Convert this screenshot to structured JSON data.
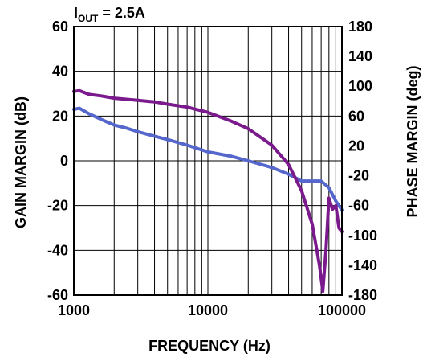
{
  "chart_data": {
    "type": "line",
    "annotation": {
      "prefix": "I",
      "sub": "OUT",
      "suffix": " = 2.5A"
    },
    "xlabel": "FREQUENCY (Hz)",
    "ylabel_left": "GAIN MARGIN (dB)",
    "ylabel_right": "PHASE MARGIN (deg)",
    "xscale": "log",
    "xlim": [
      1000,
      100000
    ],
    "ylim_left": [
      -60,
      60
    ],
    "ylim_right": [
      -180,
      180
    ],
    "x_ticks": [
      "1000",
      "10000",
      "100000"
    ],
    "y_ticks_left": [
      "60",
      "40",
      "20",
      "0",
      "-20",
      "-40",
      "-60"
    ],
    "y_ticks_right": [
      "180",
      "140",
      "100",
      "60",
      "20",
      "-20",
      "-60",
      "-100",
      "-140",
      "-180"
    ],
    "grid": true,
    "series": [
      {
        "color": "#5566cc",
        "axis": "left",
        "points": [
          [
            1000,
            23
          ],
          [
            1100,
            23.5
          ],
          [
            1300,
            21
          ],
          [
            1600,
            18.5
          ],
          [
            2000,
            16
          ],
          [
            2500,
            14.5
          ],
          [
            3000,
            13
          ],
          [
            4000,
            11
          ],
          [
            5000,
            9.5
          ],
          [
            7000,
            7
          ],
          [
            10000,
            4
          ],
          [
            15000,
            2
          ],
          [
            20000,
            0
          ],
          [
            30000,
            -3
          ],
          [
            40000,
            -6
          ],
          [
            50000,
            -9
          ],
          [
            60000,
            -9
          ],
          [
            70000,
            -9
          ],
          [
            80000,
            -12
          ],
          [
            90000,
            -18
          ],
          [
            100000,
            -22
          ]
        ]
      },
      {
        "color": "#7a1a8c",
        "axis": "right",
        "points": [
          [
            1000,
            93
          ],
          [
            1100,
            94
          ],
          [
            1300,
            89
          ],
          [
            1600,
            87
          ],
          [
            2000,
            84
          ],
          [
            3000,
            81
          ],
          [
            4000,
            79
          ],
          [
            5000,
            76
          ],
          [
            7000,
            72
          ],
          [
            10000,
            65
          ],
          [
            15000,
            53
          ],
          [
            20000,
            43
          ],
          [
            30000,
            21
          ],
          [
            40000,
            -5
          ],
          [
            50000,
            -40
          ],
          [
            60000,
            -85
          ],
          [
            68000,
            -140
          ],
          [
            72000,
            -175
          ],
          [
            76000,
            -120
          ],
          [
            80000,
            -50
          ],
          [
            85000,
            -65
          ],
          [
            90000,
            -60
          ],
          [
            95000,
            -90
          ],
          [
            100000,
            -95
          ]
        ]
      }
    ]
  }
}
